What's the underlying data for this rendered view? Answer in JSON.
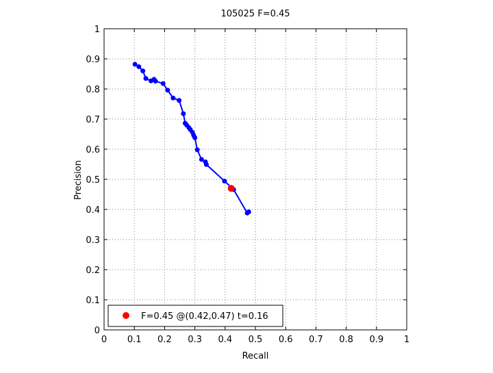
{
  "chart_data": {
    "type": "line",
    "title": "105025 F=0.45",
    "xlabel": "Recall",
    "ylabel": "Precision",
    "xlim": [
      0,
      1
    ],
    "ylim": [
      0,
      1
    ],
    "xticks": [
      "0",
      "0.1",
      "0.2",
      "0.3",
      "0.4",
      "0.5",
      "0.6",
      "0.7",
      "0.8",
      "0.9",
      "1"
    ],
    "yticks": [
      "0",
      "0.1",
      "0.2",
      "0.3",
      "0.4",
      "0.5",
      "0.6",
      "0.7",
      "0.8",
      "0.9",
      "1"
    ],
    "grid": true,
    "grid_style": "dotted",
    "legend_position": "bottom-left",
    "colors": {
      "series": "#0000ff",
      "highlight": "#ff0000",
      "axes": "#000000",
      "grid": "#808080"
    },
    "series": [
      {
        "x": [
          0.102,
          0.115,
          0.128,
          0.138,
          0.155,
          0.165,
          0.17,
          0.195,
          0.21,
          0.228,
          0.248,
          0.262,
          0.268,
          0.273,
          0.28,
          0.285,
          0.292,
          0.296,
          0.3,
          0.308,
          0.322,
          0.335,
          0.338,
          0.398,
          0.428,
          0.473,
          0.478
        ],
        "y": [
          0.882,
          0.874,
          0.86,
          0.835,
          0.827,
          0.832,
          0.826,
          0.818,
          0.796,
          0.77,
          0.762,
          0.718,
          0.686,
          0.68,
          0.672,
          0.665,
          0.656,
          0.646,
          0.638,
          0.598,
          0.566,
          0.558,
          0.549,
          0.494,
          0.466,
          0.388,
          0.392
        ]
      }
    ],
    "highlight_point": {
      "x": 0.42,
      "y": 0.47,
      "label": "F=0.45 @(0.42,0.47) t=0.16"
    }
  }
}
